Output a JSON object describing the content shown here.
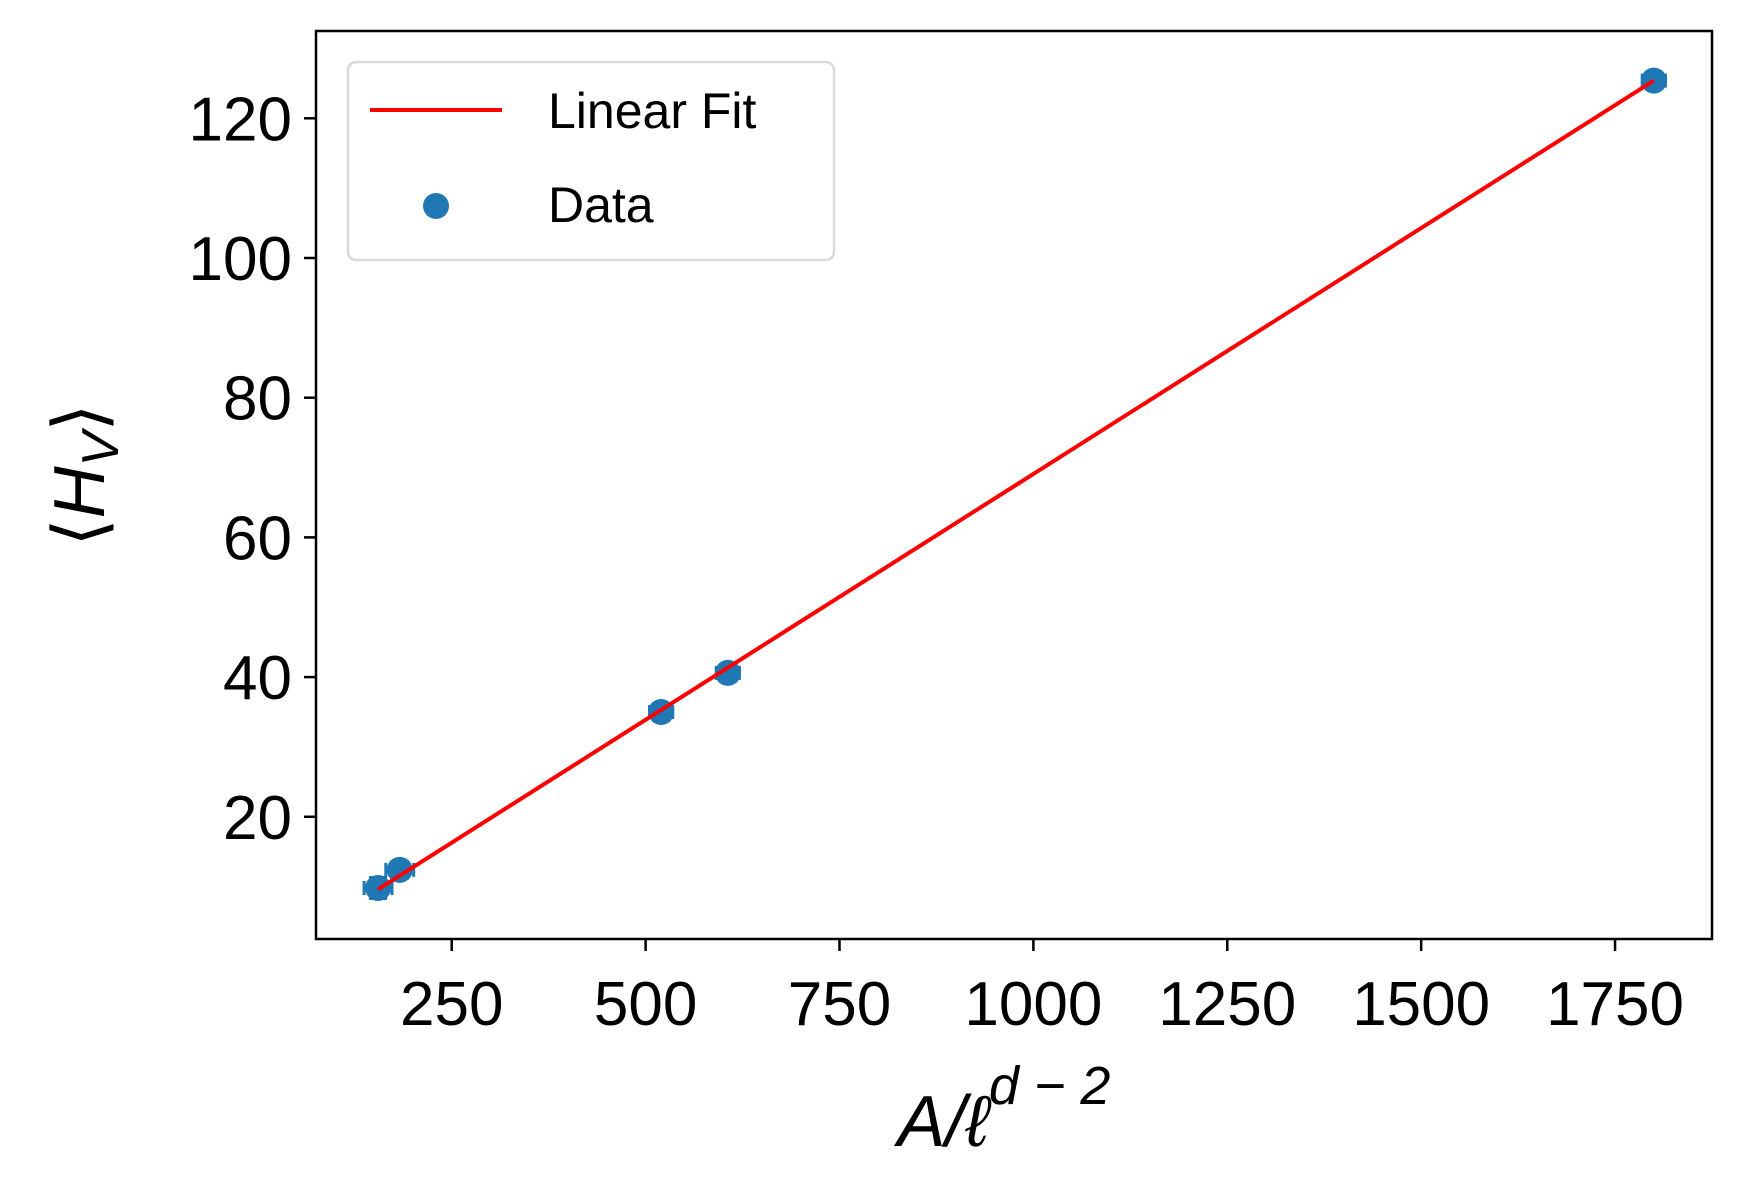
{
  "chart_data": {
    "type": "scatter",
    "xlabel": {
      "base": "A/ℓ",
      "sup": "d − 2"
    },
    "ylabel": {
      "open": "⟨",
      "main": "H",
      "sub": "V",
      "close": "⟩"
    },
    "xlim": [
      75,
      1875
    ],
    "ylim": [
      2.5,
      132.5
    ],
    "xticks": [
      250,
      500,
      750,
      1000,
      1250,
      1500,
      1750
    ],
    "yticks": [
      20,
      40,
      60,
      80,
      100,
      120
    ],
    "grid": false,
    "legend_position": "top-left",
    "colors": {
      "data": "#1f77b4",
      "fit": "#ff0000",
      "axes": "#000000"
    },
    "series": [
      {
        "name": "Data",
        "type": "scatter",
        "x": [
          155,
          183,
          520,
          606,
          1800
        ],
        "y": [
          9.8,
          12.4,
          35.0,
          40.6,
          125.4
        ],
        "xerr": [
          18,
          18,
          15,
          15,
          15
        ],
        "yerr": [
          1.5,
          1.2,
          1.2,
          1.2,
          1.2
        ]
      },
      {
        "name": "Linear Fit",
        "type": "line",
        "x": [
          155,
          1800
        ],
        "y": [
          9.6,
          125.4
        ]
      }
    ]
  }
}
